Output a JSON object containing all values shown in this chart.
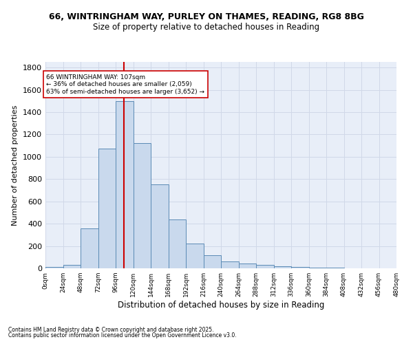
{
  "title_line1": "66, WINTRINGHAM WAY, PURLEY ON THAMES, READING, RG8 8BG",
  "title_line2": "Size of property relative to detached houses in Reading",
  "xlabel": "Distribution of detached houses by size in Reading",
  "ylabel": "Number of detached properties",
  "bar_edges": [
    0,
    24,
    48,
    72,
    96,
    120,
    144,
    168,
    192,
    216,
    240,
    264,
    288,
    312,
    336,
    360,
    384,
    408,
    432,
    456,
    480
  ],
  "bar_values": [
    10,
    30,
    355,
    1070,
    1500,
    1125,
    755,
    440,
    225,
    115,
    60,
    45,
    28,
    20,
    15,
    8,
    5,
    3,
    2,
    1
  ],
  "bar_color": "#c9d9ed",
  "bar_edge_color": "#5a8ab5",
  "property_size": 107,
  "vline_color": "#cc0000",
  "annotation_text": "66 WINTRINGHAM WAY: 107sqm\n← 36% of detached houses are smaller (2,059)\n63% of semi-detached houses are larger (3,652) →",
  "annotation_box_color": "#ffffff",
  "annotation_box_edge": "#cc0000",
  "ylim": [
    0,
    1850
  ],
  "yticks": [
    0,
    200,
    400,
    600,
    800,
    1000,
    1200,
    1400,
    1600,
    1800
  ],
  "xtick_labels": [
    "0sqm",
    "24sqm",
    "48sqm",
    "72sqm",
    "96sqm",
    "120sqm",
    "144sqm",
    "168sqm",
    "192sqm",
    "216sqm",
    "240sqm",
    "264sqm",
    "288sqm",
    "312sqm",
    "336sqm",
    "360sqm",
    "384sqm",
    "408sqm",
    "432sqm",
    "456sqm",
    "480sqm"
  ],
  "footnote_line1": "Contains HM Land Registry data © Crown copyright and database right 2025.",
  "footnote_line2": "Contains public sector information licensed under the Open Government Licence v3.0.",
  "bg_color": "#ffffff",
  "grid_color": "#d0d8e8",
  "ax_bg_color": "#e8eef8"
}
